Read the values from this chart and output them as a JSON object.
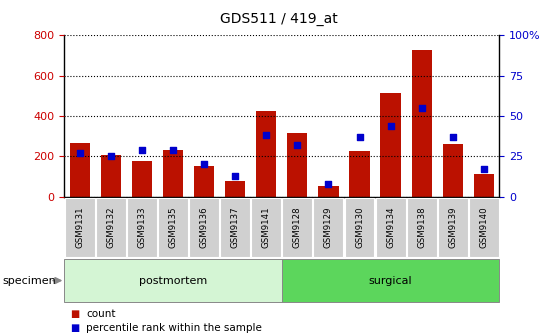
{
  "title": "GDS511 / 419_at",
  "categories": [
    "GSM9131",
    "GSM9132",
    "GSM9133",
    "GSM9135",
    "GSM9136",
    "GSM9137",
    "GSM9141",
    "GSM9128",
    "GSM9129",
    "GSM9130",
    "GSM9134",
    "GSM9138",
    "GSM9139",
    "GSM9140"
  ],
  "counts": [
    265,
    205,
    178,
    232,
    150,
    75,
    425,
    315,
    50,
    225,
    515,
    725,
    262,
    112
  ],
  "percentile_ranks": [
    27,
    25,
    29,
    29,
    20,
    13,
    38,
    32,
    8,
    37,
    44,
    55,
    37,
    17
  ],
  "groups": [
    {
      "label": "postmortem",
      "start": 0,
      "end": 6,
      "color": "#d4f5d4"
    },
    {
      "label": "surgical",
      "start": 7,
      "end": 13,
      "color": "#5cd65c"
    }
  ],
  "left_yaxis": {
    "min": 0,
    "max": 800,
    "ticks": [
      0,
      200,
      400,
      600,
      800
    ],
    "color": "#cc0000"
  },
  "right_yaxis": {
    "min": 0,
    "max": 100,
    "ticks": [
      0,
      25,
      50,
      75,
      100
    ],
    "color": "#0000cc"
  },
  "bar_color": "#bb1100",
  "dot_color": "#0000cc",
  "tick_label_bg": "#d0d0d0",
  "specimen_label": "specimen",
  "legend_count_label": "count",
  "legend_percentile_label": "percentile rank within the sample"
}
